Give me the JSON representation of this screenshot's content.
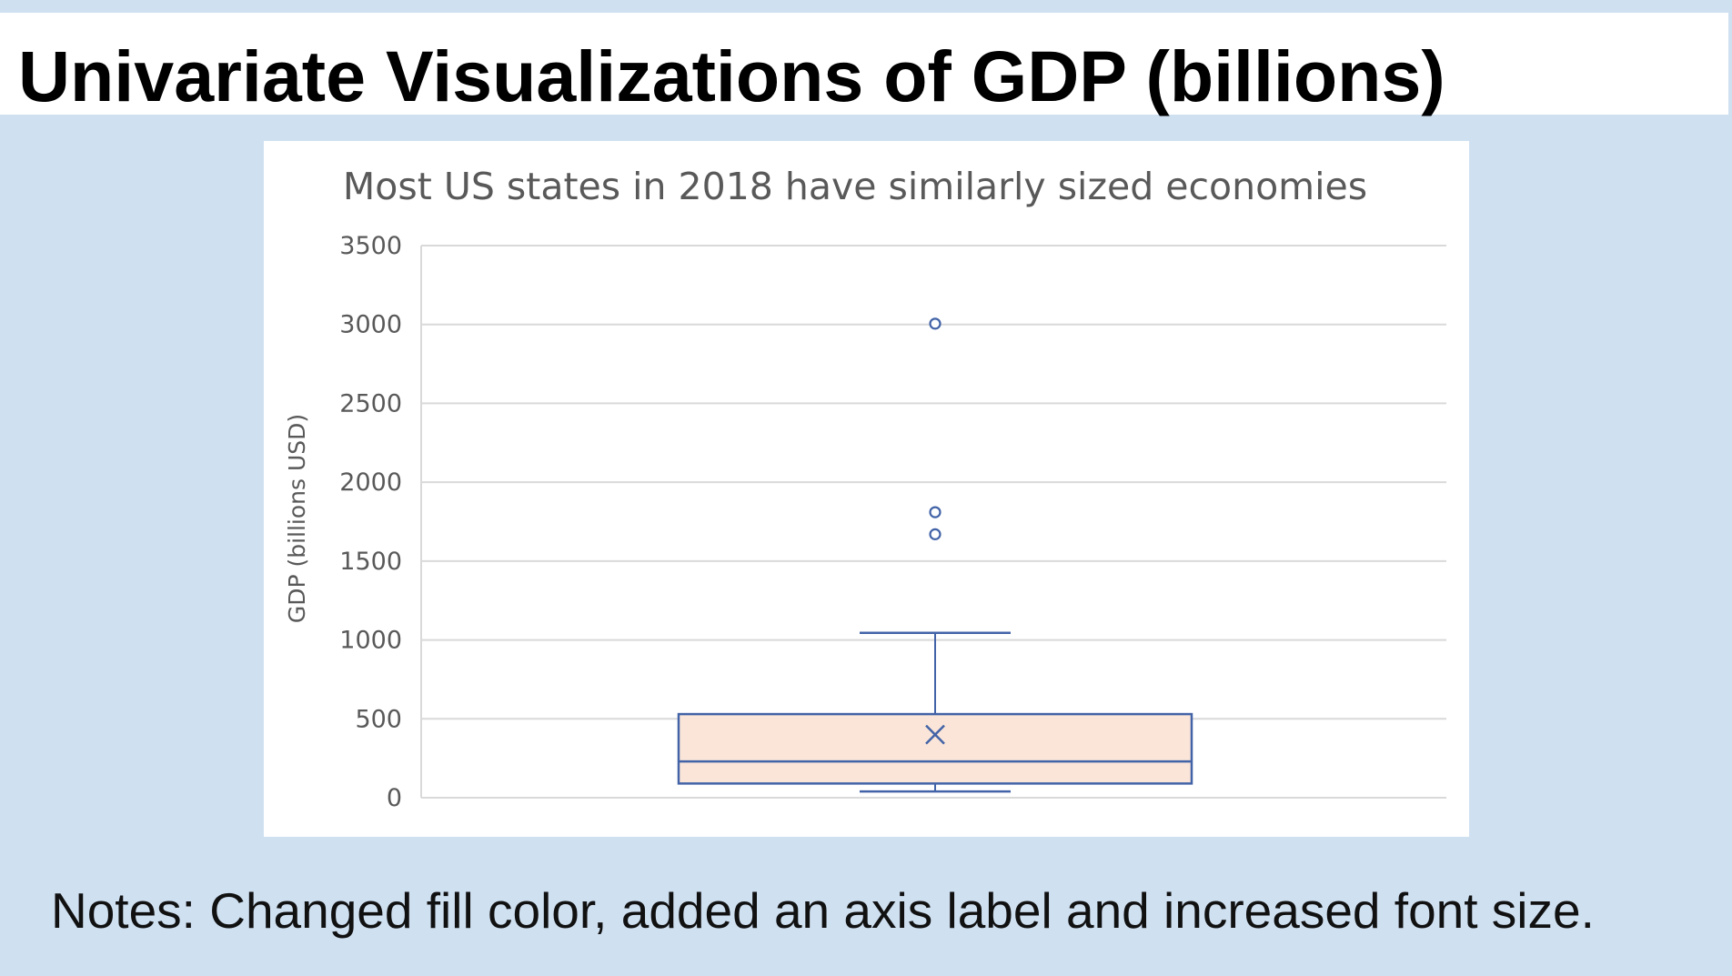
{
  "slide": {
    "title": "Univariate Visualizations of GDP (billions)",
    "notes": "Notes: Changed fill color, added an axis label and increased font size."
  },
  "colors": {
    "background": "#cfe0f1",
    "box_fill": "#fae5d8",
    "box_stroke": "#4263a7",
    "gridline": "#d9d9d9",
    "text": "#595959"
  },
  "chart_data": {
    "type": "box",
    "title": "Most US states in 2018 have similarly sized economies",
    "xlabel": "",
    "ylabel": "GDP (billions USD)",
    "ylim": [
      0,
      3500
    ],
    "yticks": [
      0,
      500,
      1000,
      1500,
      2000,
      2500,
      3000,
      3500
    ],
    "grid": true,
    "box": {
      "whisker_low": 40,
      "q1": 90,
      "median": 230,
      "q3": 530,
      "whisker_high": 1045,
      "mean": 400
    },
    "outliers": [
      1670,
      1810,
      3005
    ]
  }
}
